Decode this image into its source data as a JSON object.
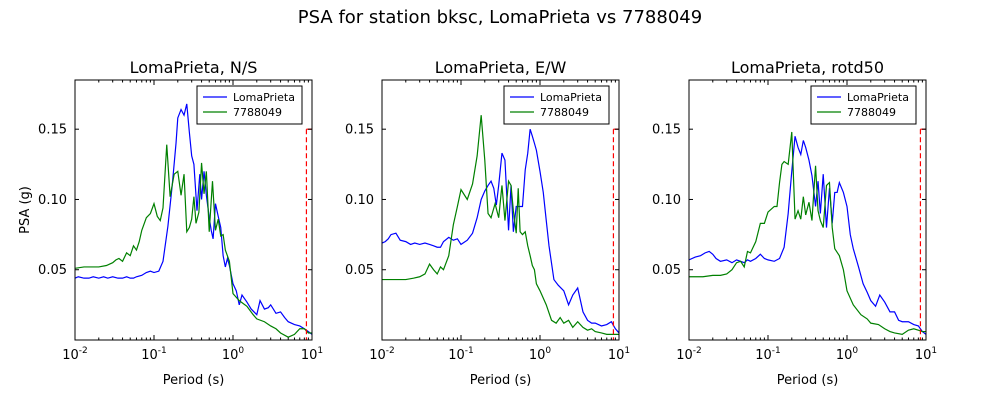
{
  "chart_data": {
    "type": "line",
    "title": "PSA for station bksc, LomaPrieta vs 7788049",
    "colors": {
      "LomaPrieta": "#0000ff",
      "7788049": "#008000",
      "marker": "#ff0000"
    },
    "xscale": "log",
    "xlim": [
      0.01,
      10
    ],
    "ylim": [
      0.0,
      0.185
    ],
    "xticks": [
      {
        "v": 0.01,
        "base": "10",
        "exp": "-2"
      },
      {
        "v": 0.1,
        "base": "10",
        "exp": "-1"
      },
      {
        "v": 1,
        "base": "10",
        "exp": "0"
      },
      {
        "v": 10,
        "base": "10",
        "exp": "1"
      }
    ],
    "yticks": [
      {
        "v": 0.05,
        "label": "0.05"
      },
      {
        "v": 0.1,
        "label": "0.10"
      },
      {
        "v": 0.15,
        "label": "0.15"
      }
    ],
    "xlabel": "Period (s)",
    "ylabel": "PSA (g)",
    "legend_position": "upper right",
    "dashed_marker": {
      "x": 8.5,
      "y": [
        0.0,
        0.15
      ]
    },
    "panels": [
      {
        "title": "LomaPrieta, N/S",
        "ylabel": "PSA (g)",
        "series": [
          {
            "name": "LomaPrieta",
            "x": [
              0.01,
              0.011,
              0.013,
              0.015,
              0.017,
              0.02,
              0.023,
              0.026,
              0.03,
              0.035,
              0.04,
              0.045,
              0.05,
              0.055,
              0.06,
              0.07,
              0.08,
              0.09,
              0.1,
              0.115,
              0.13,
              0.15,
              0.17,
              0.19,
              0.2,
              0.22,
              0.24,
              0.26,
              0.28,
              0.3,
              0.32,
              0.35,
              0.38,
              0.4,
              0.43,
              0.46,
              0.5,
              0.53,
              0.56,
              0.6,
              0.65,
              0.7,
              0.75,
              0.8,
              0.85,
              0.9,
              1.0,
              1.1,
              1.2,
              1.3,
              1.5,
              1.7,
              2.0,
              2.2,
              2.5,
              2.8,
              3.0,
              3.5,
              4.0,
              4.5,
              5.0,
              6.0,
              7.0,
              8.0,
              9.0,
              10.0
            ],
            "y": [
              0.044,
              0.045,
              0.044,
              0.044,
              0.045,
              0.044,
              0.045,
              0.044,
              0.045,
              0.044,
              0.044,
              0.045,
              0.044,
              0.044,
              0.045,
              0.046,
              0.048,
              0.049,
              0.048,
              0.049,
              0.056,
              0.081,
              0.11,
              0.14,
              0.158,
              0.164,
              0.16,
              0.168,
              0.148,
              0.131,
              0.125,
              0.092,
              0.118,
              0.1,
              0.12,
              0.103,
              0.087,
              0.078,
              0.072,
              0.097,
              0.088,
              0.08,
              0.06,
              0.052,
              0.058,
              0.053,
              0.04,
              0.035,
              0.025,
              0.032,
              0.027,
              0.022,
              0.018,
              0.028,
              0.022,
              0.023,
              0.025,
              0.019,
              0.02,
              0.016,
              0.013,
              0.011,
              0.01,
              0.008,
              0.006,
              0.004
            ]
          },
          {
            "name": "7788049",
            "x": [
              0.01,
              0.013,
              0.016,
              0.02,
              0.025,
              0.03,
              0.033,
              0.036,
              0.04,
              0.045,
              0.05,
              0.055,
              0.06,
              0.065,
              0.07,
              0.08,
              0.09,
              0.1,
              0.11,
              0.12,
              0.13,
              0.145,
              0.16,
              0.18,
              0.2,
              0.22,
              0.24,
              0.26,
              0.28,
              0.3,
              0.32,
              0.34,
              0.37,
              0.4,
              0.43,
              0.46,
              0.5,
              0.55,
              0.6,
              0.65,
              0.7,
              0.75,
              0.8,
              0.9,
              1.0,
              1.2,
              1.5,
              1.8,
              2.0,
              2.5,
              3.0,
              3.5,
              4.0,
              5.0,
              6.0,
              7.0,
              8.0,
              9.0,
              10.0
            ],
            "y": [
              0.051,
              0.052,
              0.052,
              0.052,
              0.053,
              0.055,
              0.057,
              0.058,
              0.056,
              0.062,
              0.06,
              0.067,
              0.064,
              0.07,
              0.078,
              0.087,
              0.09,
              0.097,
              0.088,
              0.085,
              0.094,
              0.139,
              0.102,
              0.118,
              0.12,
              0.103,
              0.118,
              0.077,
              0.08,
              0.086,
              0.102,
              0.083,
              0.091,
              0.126,
              0.104,
              0.12,
              0.077,
              0.113,
              0.078,
              0.086,
              0.074,
              0.075,
              0.064,
              0.056,
              0.033,
              0.028,
              0.024,
              0.018,
              0.015,
              0.013,
              0.01,
              0.008,
              0.005,
              0.002,
              0.004,
              0.008,
              0.008,
              0.005,
              0.005
            ]
          }
        ]
      },
      {
        "title": "LomaPrieta, E/W",
        "ylabel": "",
        "series": [
          {
            "name": "LomaPrieta",
            "x": [
              0.01,
              0.011,
              0.012,
              0.013,
              0.015,
              0.017,
              0.02,
              0.023,
              0.026,
              0.03,
              0.035,
              0.04,
              0.045,
              0.05,
              0.055,
              0.06,
              0.07,
              0.08,
              0.09,
              0.1,
              0.12,
              0.14,
              0.16,
              0.18,
              0.2,
              0.22,
              0.24,
              0.26,
              0.28,
              0.3,
              0.33,
              0.36,
              0.4,
              0.43,
              0.46,
              0.5,
              0.55,
              0.6,
              0.65,
              0.7,
              0.75,
              0.8,
              0.85,
              0.9,
              1.0,
              1.1,
              1.2,
              1.3,
              1.5,
              1.7,
              2.0,
              2.3,
              2.6,
              3.0,
              3.5,
              4.0,
              4.5,
              5.0,
              6.0,
              7.0,
              8.0,
              9.0,
              10.0
            ],
            "y": [
              0.069,
              0.07,
              0.072,
              0.075,
              0.076,
              0.071,
              0.07,
              0.068,
              0.069,
              0.068,
              0.069,
              0.068,
              0.067,
              0.066,
              0.066,
              0.07,
              0.073,
              0.071,
              0.072,
              0.068,
              0.071,
              0.076,
              0.087,
              0.1,
              0.106,
              0.11,
              0.113,
              0.108,
              0.096,
              0.11,
              0.133,
              0.128,
              0.078,
              0.11,
              0.077,
              0.095,
              0.095,
              0.095,
              0.121,
              0.133,
              0.15,
              0.145,
              0.14,
              0.135,
              0.12,
              0.105,
              0.085,
              0.067,
              0.043,
              0.039,
              0.035,
              0.025,
              0.032,
              0.037,
              0.02,
              0.014,
              0.012,
              0.012,
              0.01,
              0.011,
              0.013,
              0.008,
              0.005
            ]
          },
          {
            "name": "7788049",
            "x": [
              0.01,
              0.015,
              0.02,
              0.025,
              0.03,
              0.035,
              0.04,
              0.045,
              0.05,
              0.055,
              0.06,
              0.07,
              0.08,
              0.09,
              0.1,
              0.12,
              0.14,
              0.16,
              0.18,
              0.2,
              0.22,
              0.24,
              0.27,
              0.3,
              0.33,
              0.36,
              0.4,
              0.43,
              0.46,
              0.5,
              0.53,
              0.56,
              0.6,
              0.65,
              0.7,
              0.75,
              0.8,
              0.85,
              0.9,
              1.0,
              1.2,
              1.4,
              1.6,
              1.8,
              2.0,
              2.3,
              2.6,
              3.0,
              3.5,
              4.0,
              4.5,
              5.0,
              6.0,
              7.0,
              8.0,
              9.0,
              10.0
            ],
            "y": [
              0.043,
              0.043,
              0.043,
              0.044,
              0.045,
              0.047,
              0.054,
              0.05,
              0.047,
              0.052,
              0.05,
              0.06,
              0.082,
              0.095,
              0.107,
              0.1,
              0.111,
              0.131,
              0.16,
              0.128,
              0.09,
              0.087,
              0.097,
              0.087,
              0.11,
              0.085,
              0.113,
              0.11,
              0.092,
              0.076,
              0.108,
              0.077,
              0.075,
              0.077,
              0.067,
              0.06,
              0.053,
              0.05,
              0.04,
              0.035,
              0.025,
              0.014,
              0.012,
              0.016,
              0.012,
              0.014,
              0.009,
              0.013,
              0.009,
              0.007,
              0.008,
              0.006,
              0.005,
              0.004,
              0.004,
              0.004,
              0.004
            ]
          }
        ]
      },
      {
        "title": "LomaPrieta, rotd50",
        "ylabel": "",
        "series": [
          {
            "name": "LomaPrieta",
            "x": [
              0.01,
              0.012,
              0.014,
              0.016,
              0.018,
              0.02,
              0.022,
              0.025,
              0.03,
              0.035,
              0.04,
              0.045,
              0.05,
              0.055,
              0.06,
              0.07,
              0.08,
              0.09,
              0.1,
              0.12,
              0.14,
              0.16,
              0.18,
              0.2,
              0.22,
              0.24,
              0.26,
              0.28,
              0.3,
              0.33,
              0.36,
              0.4,
              0.43,
              0.46,
              0.5,
              0.55,
              0.6,
              0.65,
              0.7,
              0.75,
              0.8,
              0.9,
              1.0,
              1.1,
              1.2,
              1.4,
              1.6,
              1.8,
              2.0,
              2.3,
              2.6,
              3.0,
              3.5,
              4.0,
              4.5,
              5.0,
              6.0,
              7.0,
              8.0,
              9.0,
              10.0
            ],
            "y": [
              0.057,
              0.059,
              0.06,
              0.062,
              0.063,
              0.061,
              0.058,
              0.056,
              0.057,
              0.055,
              0.057,
              0.056,
              0.055,
              0.057,
              0.056,
              0.058,
              0.061,
              0.058,
              0.057,
              0.056,
              0.058,
              0.066,
              0.09,
              0.12,
              0.145,
              0.137,
              0.132,
              0.142,
              0.137,
              0.128,
              0.117,
              0.095,
              0.113,
              0.09,
              0.118,
              0.08,
              0.108,
              0.083,
              0.105,
              0.105,
              0.112,
              0.105,
              0.095,
              0.075,
              0.065,
              0.052,
              0.04,
              0.034,
              0.028,
              0.024,
              0.032,
              0.027,
              0.02,
              0.02,
              0.014,
              0.013,
              0.013,
              0.011,
              0.01,
              0.006,
              0.004
            ]
          },
          {
            "name": "7788049",
            "x": [
              0.01,
              0.015,
              0.02,
              0.025,
              0.03,
              0.035,
              0.04,
              0.045,
              0.05,
              0.055,
              0.06,
              0.07,
              0.08,
              0.09,
              0.1,
              0.12,
              0.13,
              0.14,
              0.15,
              0.16,
              0.18,
              0.2,
              0.22,
              0.24,
              0.26,
              0.28,
              0.3,
              0.33,
              0.36,
              0.4,
              0.43,
              0.46,
              0.5,
              0.55,
              0.6,
              0.65,
              0.7,
              0.8,
              0.9,
              1.0,
              1.2,
              1.5,
              1.8,
              2.0,
              2.5,
              3.0,
              3.5,
              4.0,
              5.0,
              6.0,
              7.0,
              8.0,
              9.0,
              10.0
            ],
            "y": [
              0.045,
              0.045,
              0.046,
              0.046,
              0.047,
              0.05,
              0.055,
              0.056,
              0.052,
              0.063,
              0.062,
              0.07,
              0.083,
              0.083,
              0.091,
              0.095,
              0.095,
              0.112,
              0.125,
              0.127,
              0.125,
              0.148,
              0.086,
              0.092,
              0.086,
              0.102,
              0.089,
              0.098,
              0.085,
              0.124,
              0.092,
              0.085,
              0.08,
              0.11,
              0.112,
              0.08,
              0.065,
              0.06,
              0.05,
              0.035,
              0.025,
              0.018,
              0.015,
              0.012,
              0.011,
              0.008,
              0.006,
              0.005,
              0.004,
              0.007,
              0.008,
              0.007,
              0.006,
              0.006
            ]
          }
        ]
      }
    ]
  }
}
